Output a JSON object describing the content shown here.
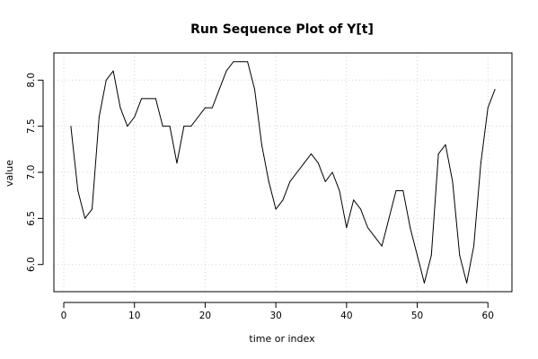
{
  "chart_data": {
    "type": "line",
    "title": "Run Sequence Plot of Y[t]",
    "xlabel": "time or index",
    "ylabel": "value",
    "xlim": [
      -1.4,
      63.4
    ],
    "ylim": [
      5.705,
      8.295
    ],
    "x_ticks": [
      0,
      10,
      20,
      30,
      40,
      50,
      60
    ],
    "y_ticks": [
      6.0,
      6.5,
      7.0,
      7.5,
      8.0
    ],
    "x_tick_labels": [
      "0",
      "10",
      "20",
      "30",
      "40",
      "50",
      "60"
    ],
    "y_tick_labels": [
      "6.0",
      "6.5",
      "7.0",
      "7.5",
      "8.0"
    ],
    "grid": true,
    "series": [
      {
        "color": "#000000",
        "x": [
          1,
          2,
          3,
          4,
          5,
          6,
          7,
          8,
          9,
          10,
          11,
          12,
          13,
          14,
          15,
          16,
          17,
          18,
          19,
          20,
          21,
          22,
          23,
          24,
          25,
          26,
          27,
          28,
          29,
          30,
          31,
          32,
          33,
          34,
          35,
          36,
          37,
          38,
          39,
          40,
          41,
          42,
          43,
          44,
          45,
          46,
          47,
          48,
          49,
          50,
          51,
          52,
          53,
          54,
          55,
          56,
          57,
          58,
          59,
          60,
          61
        ],
        "values": [
          7.5,
          6.8,
          6.5,
          6.6,
          7.6,
          8.0,
          8.1,
          7.7,
          7.5,
          7.6,
          7.8,
          7.8,
          7.8,
          7.5,
          7.5,
          7.1,
          7.5,
          7.5,
          7.6,
          7.7,
          7.7,
          7.9,
          8.1,
          8.2,
          8.2,
          8.2,
          7.9,
          7.3,
          6.9,
          6.6,
          6.7,
          6.9,
          7.0,
          7.1,
          7.2,
          7.1,
          6.9,
          7.0,
          6.8,
          6.4,
          6.7,
          6.6,
          6.4,
          6.3,
          6.2,
          6.5,
          6.8,
          6.8,
          6.4,
          6.1,
          5.8,
          6.1,
          7.2,
          7.3,
          6.9,
          6.1,
          5.8,
          6.2,
          7.1,
          7.7,
          7.9
        ]
      }
    ]
  }
}
